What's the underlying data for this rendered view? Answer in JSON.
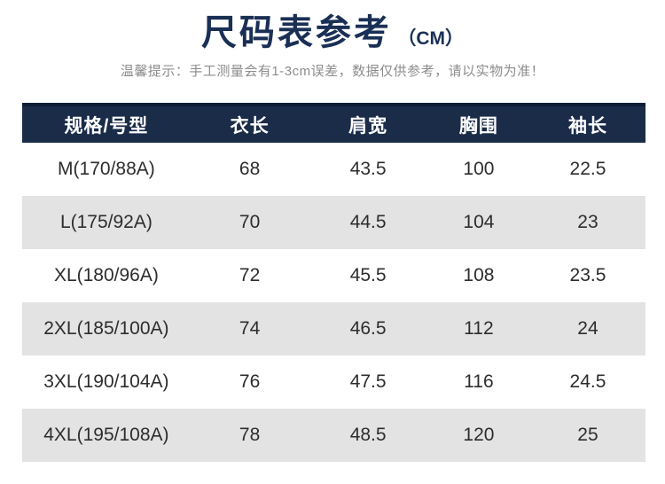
{
  "page": {
    "title": "尺码表参考",
    "title_unit": "（CM）",
    "disclaimer": "温馨提示：手工测量会有1-3cm误差，数据仅供参考，请以实物为准！"
  },
  "chart_data": {
    "type": "table",
    "title": "尺码表参考（CM）",
    "unit": "cm",
    "columns": [
      "规格/号型",
      "衣长",
      "肩宽",
      "胸围",
      "袖长"
    ],
    "rows": [
      [
        "M(170/88A)",
        "68",
        "43.5",
        "100",
        "22.5"
      ],
      [
        "L(175/92A)",
        "70",
        "44.5",
        "104",
        "23"
      ],
      [
        "XL(180/96A)",
        "72",
        "45.5",
        "108",
        "23.5"
      ],
      [
        "2XL(185/100A)",
        "74",
        "46.5",
        "112",
        "24"
      ],
      [
        "3XL(190/104A)",
        "76",
        "47.5",
        "116",
        "24.5"
      ],
      [
        "4XL(195/108A)",
        "78",
        "48.5",
        "120",
        "25"
      ]
    ]
  },
  "colors": {
    "header_navy": "#1b2c49",
    "header_top_border": "#0f1d35",
    "title_navy": "#1a2f55",
    "row_alt_gray": "#e3e3e3",
    "disclaimer_gray": "#8c8c8c",
    "body_text": "#2d2d2d"
  }
}
